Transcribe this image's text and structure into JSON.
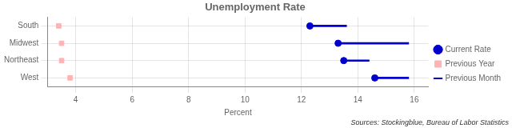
{
  "chart_data": {
    "type": "dot",
    "title": "Unemployment Rate",
    "xlabel": "Percent",
    "annotations": [
      "Sources: Stockingblue, Bureau of Labor Statistics"
    ],
    "orientation": "horizontal",
    "categories": [
      "South",
      "Midwest",
      "Northeast",
      "West"
    ],
    "series": [
      {
        "name": "Current Rate",
        "color": "#0000cc",
        "marker": "circle",
        "values": [
          12.3,
          13.3,
          13.5,
          14.6
        ]
      },
      {
        "name": "Previous Month",
        "color": "#0000cc",
        "type": "segment",
        "line_style": "solid",
        "values": [
          13.6,
          15.8,
          14.4,
          15.8
        ]
      },
      {
        "name": "Previous Year",
        "color": "#ffb3b3",
        "marker": "square",
        "values": [
          3.4,
          3.5,
          3.5,
          3.8
        ]
      }
    ],
    "xlim": [
      3.0,
      16.5
    ],
    "xticks": [
      4,
      6,
      8,
      10,
      12,
      14,
      16
    ],
    "grid": true,
    "legend": "right"
  }
}
